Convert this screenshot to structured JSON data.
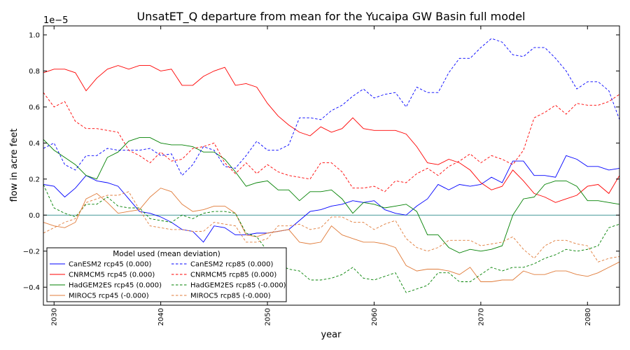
{
  "chart_data": {
    "type": "line",
    "title": "UnsatET_Q departure from mean for the Yucaipa GW Basin full model",
    "xlabel": "year",
    "ylabel": "flow in acre feet",
    "scale_note": "1e−5",
    "xlim": [
      2029,
      2083
    ],
    "ylim": [
      -0.5,
      1.05
    ],
    "x_ticks": [
      2030,
      2040,
      2050,
      2060,
      2070,
      2080
    ],
    "y_ticks": [
      -0.4,
      -0.2,
      0.0,
      0.2,
      0.4,
      0.6,
      0.8,
      1.0
    ],
    "y_tick_labels": [
      "−0.4",
      "−0.2",
      "0.0",
      "0.2",
      "0.4",
      "0.6",
      "0.8",
      "1.0"
    ],
    "zero_line_color": "#2e8b8b",
    "legend": {
      "title": "Model used (mean deviation)",
      "placement": "lower-left",
      "columns": 2
    },
    "x": [
      2029,
      2030,
      2031,
      2032,
      2033,
      2034,
      2035,
      2036,
      2037,
      2038,
      2039,
      2040,
      2041,
      2042,
      2043,
      2044,
      2045,
      2046,
      2047,
      2048,
      2049,
      2050,
      2051,
      2052,
      2053,
      2054,
      2055,
      2056,
      2057,
      2058,
      2059,
      2060,
      2061,
      2062,
      2063,
      2064,
      2065,
      2066,
      2067,
      2068,
      2069,
      2070,
      2071,
      2072,
      2073,
      2074,
      2075,
      2076,
      2077,
      2078,
      2079,
      2080,
      2081,
      2082,
      2083
    ],
    "series": [
      {
        "name": "CanESM2 rcp45 (0.000)",
        "color": "#0000ff",
        "dash": "solid",
        "values": [
          0.17,
          0.16,
          0.1,
          0.15,
          0.22,
          0.19,
          0.18,
          0.16,
          0.09,
          0.02,
          0.01,
          -0.01,
          -0.04,
          -0.08,
          -0.09,
          -0.15,
          -0.06,
          -0.07,
          -0.11,
          -0.11,
          -0.1,
          -0.1,
          -0.09,
          -0.08,
          -0.03,
          0.02,
          0.03,
          0.05,
          0.06,
          0.08,
          0.07,
          0.08,
          0.03,
          0.01,
          0.0,
          0.05,
          0.09,
          0.17,
          0.14,
          0.17,
          0.16,
          0.17,
          0.21,
          0.18,
          0.3,
          0.3,
          0.22,
          0.22,
          0.21,
          0.33,
          0.31,
          0.27,
          0.27,
          0.25,
          0.26
        ]
      },
      {
        "name": "CNRMCM5 rcp45 (0.000)",
        "color": "#ff0000",
        "dash": "solid",
        "values": [
          0.79,
          0.81,
          0.81,
          0.79,
          0.69,
          0.76,
          0.81,
          0.83,
          0.81,
          0.83,
          0.83,
          0.8,
          0.81,
          0.72,
          0.72,
          0.77,
          0.8,
          0.82,
          0.72,
          0.73,
          0.71,
          0.62,
          0.55,
          0.5,
          0.46,
          0.44,
          0.49,
          0.46,
          0.48,
          0.54,
          0.48,
          0.47,
          0.47,
          0.47,
          0.45,
          0.38,
          0.29,
          0.28,
          0.31,
          0.29,
          0.25,
          0.18,
          0.14,
          0.16,
          0.25,
          0.19,
          0.12,
          0.1,
          0.07,
          0.09,
          0.11,
          0.16,
          0.17,
          0.12,
          0.22
        ]
      },
      {
        "name": "HadGEM2ES rcp45 (0.000)",
        "color": "#008000",
        "dash": "solid",
        "values": [
          0.42,
          0.36,
          0.32,
          0.28,
          0.22,
          0.2,
          0.32,
          0.35,
          0.41,
          0.43,
          0.43,
          0.4,
          0.39,
          0.39,
          0.38,
          0.35,
          0.35,
          0.31,
          0.24,
          0.16,
          0.18,
          0.19,
          0.14,
          0.14,
          0.08,
          0.13,
          0.13,
          0.14,
          0.09,
          0.01,
          0.07,
          0.06,
          0.04,
          0.05,
          0.06,
          0.02,
          -0.11,
          -0.11,
          -0.18,
          -0.21,
          -0.19,
          -0.2,
          -0.19,
          -0.17,
          0.0,
          0.09,
          0.1,
          0.17,
          0.19,
          0.19,
          0.16,
          0.08,
          0.08,
          0.07,
          0.06
        ]
      },
      {
        "name": "MIROC5 rcp45 (-0.000)",
        "color": "#e07b39",
        "dash": "solid",
        "values": [
          -0.04,
          -0.06,
          -0.07,
          -0.04,
          0.09,
          0.12,
          0.07,
          0.01,
          0.02,
          0.03,
          0.1,
          0.15,
          0.13,
          0.06,
          0.02,
          0.03,
          0.05,
          0.05,
          0.01,
          -0.11,
          -0.12,
          -0.1,
          -0.09,
          -0.08,
          -0.15,
          -0.16,
          -0.15,
          -0.06,
          -0.11,
          -0.13,
          -0.15,
          -0.15,
          -0.16,
          -0.18,
          -0.28,
          -0.31,
          -0.3,
          -0.3,
          -0.31,
          -0.33,
          -0.29,
          -0.37,
          -0.37,
          -0.36,
          -0.36,
          -0.31,
          -0.33,
          -0.33,
          -0.31,
          -0.31,
          -0.33,
          -0.34,
          -0.32,
          -0.29,
          -0.26
        ]
      },
      {
        "name": "CanESM2 rcp85 (0.000)",
        "color": "#0000ff",
        "dash": "dashed",
        "values": [
          0.37,
          0.4,
          0.28,
          0.25,
          0.33,
          0.33,
          0.37,
          0.36,
          0.36,
          0.36,
          0.37,
          0.33,
          0.34,
          0.22,
          0.28,
          0.38,
          0.36,
          0.27,
          0.26,
          0.33,
          0.41,
          0.36,
          0.36,
          0.39,
          0.54,
          0.54,
          0.53,
          0.58,
          0.61,
          0.66,
          0.7,
          0.65,
          0.67,
          0.68,
          0.6,
          0.71,
          0.68,
          0.68,
          0.79,
          0.87,
          0.87,
          0.93,
          0.98,
          0.96,
          0.89,
          0.88,
          0.93,
          0.93,
          0.87,
          0.8,
          0.7,
          0.74,
          0.74,
          0.69,
          0.53
        ]
      },
      {
        "name": "CNRMCM5 rcp85 (0.000)",
        "color": "#ff0000",
        "dash": "dashed",
        "values": [
          0.68,
          0.6,
          0.63,
          0.52,
          0.48,
          0.48,
          0.47,
          0.46,
          0.36,
          0.33,
          0.29,
          0.35,
          0.3,
          0.31,
          0.37,
          0.38,
          0.4,
          0.29,
          0.23,
          0.29,
          0.23,
          0.28,
          0.24,
          0.22,
          0.21,
          0.2,
          0.29,
          0.29,
          0.24,
          0.15,
          0.15,
          0.16,
          0.13,
          0.19,
          0.18,
          0.23,
          0.26,
          0.22,
          0.27,
          0.3,
          0.34,
          0.29,
          0.33,
          0.31,
          0.28,
          0.36,
          0.54,
          0.57,
          0.61,
          0.56,
          0.62,
          0.61,
          0.61,
          0.63,
          0.67
        ]
      },
      {
        "name": "HadGEM2ES rcp85 (-0.000)",
        "color": "#008000",
        "dash": "dashed",
        "values": [
          0.17,
          0.04,
          0.01,
          -0.01,
          0.06,
          0.06,
          0.1,
          0.05,
          0.04,
          0.04,
          -0.02,
          -0.03,
          -0.04,
          0.0,
          -0.02,
          0.01,
          0.02,
          0.02,
          0.01,
          -0.1,
          -0.12,
          -0.2,
          -0.27,
          -0.3,
          -0.31,
          -0.36,
          -0.36,
          -0.35,
          -0.33,
          -0.29,
          -0.35,
          -0.36,
          -0.34,
          -0.32,
          -0.43,
          -0.41,
          -0.39,
          -0.32,
          -0.32,
          -0.37,
          -0.37,
          -0.33,
          -0.29,
          -0.31,
          -0.29,
          -0.29,
          -0.27,
          -0.24,
          -0.22,
          -0.19,
          -0.2,
          -0.19,
          -0.17,
          -0.07,
          -0.05
        ]
      },
      {
        "name": "MIROC5 rcp85 (-0.000)",
        "color": "#e07b39",
        "dash": "dashed",
        "values": [
          -0.1,
          -0.07,
          -0.04,
          -0.02,
          0.07,
          0.09,
          0.11,
          0.11,
          0.13,
          0.03,
          -0.06,
          -0.07,
          -0.08,
          -0.08,
          -0.09,
          -0.09,
          -0.04,
          -0.05,
          -0.06,
          -0.15,
          -0.15,
          -0.13,
          -0.06,
          -0.06,
          -0.05,
          -0.08,
          -0.07,
          -0.01,
          -0.01,
          -0.04,
          -0.04,
          -0.08,
          -0.05,
          -0.03,
          -0.13,
          -0.18,
          -0.2,
          -0.18,
          -0.14,
          -0.14,
          -0.14,
          -0.17,
          -0.16,
          -0.15,
          -0.12,
          -0.19,
          -0.24,
          -0.17,
          -0.14,
          -0.14,
          -0.16,
          -0.17,
          -0.26,
          -0.24,
          -0.23
        ]
      }
    ]
  }
}
